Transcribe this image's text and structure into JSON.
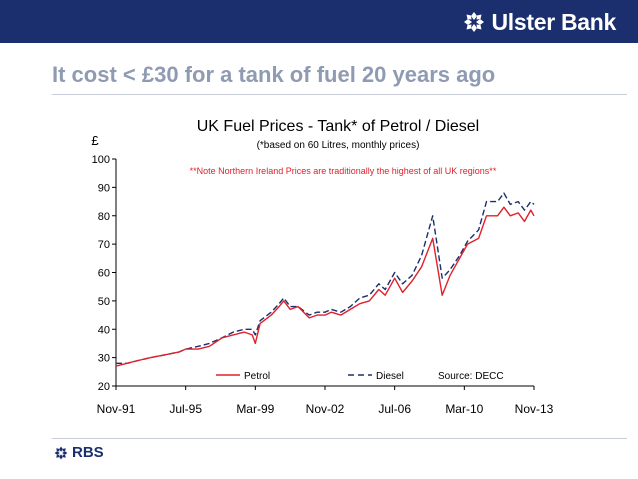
{
  "header": {
    "brand_name": "Ulster Bank",
    "brand_icon": "daisy-wheel-icon",
    "bar_color": "#1b2f6e"
  },
  "slide": {
    "headline": "It cost < £30 for a tank of fuel 20 years ago"
  },
  "footer": {
    "logo_text": "RBS",
    "logo_icon": "daisy-wheel-icon"
  },
  "chart_data": {
    "type": "line",
    "title": "UK Fuel Prices - Tank* of Petrol / Diesel",
    "subtitle": "(*based on 60 Litres, monthly prices)",
    "note": "**Note Northern Ireland Prices are traditionally the highest of all UK regions**",
    "ylabel": "£",
    "source": "Source: DECC",
    "ylim": [
      20,
      100
    ],
    "yticks": [
      "20",
      "30",
      "40",
      "50",
      "60",
      "70",
      "80",
      "90",
      "100"
    ],
    "xticks": [
      "Nov-91",
      "Jul-95",
      "Mar-99",
      "Nov-02",
      "Jul-06",
      "Mar-10",
      "Nov-13"
    ],
    "x_range": [
      "1991-11",
      "2013-11"
    ],
    "grid": false,
    "legend_position": "bottom",
    "series": [
      {
        "name": "Petrol",
        "color": "#e0202a",
        "style": "solid",
        "points": [
          [
            "1991-11",
            27
          ],
          [
            "1992-06",
            28
          ],
          [
            "1993-01",
            29
          ],
          [
            "1993-09",
            30
          ],
          [
            "1994-06",
            31
          ],
          [
            "1995-03",
            32
          ],
          [
            "1995-07",
            33
          ],
          [
            "1996-03",
            33
          ],
          [
            "1996-10",
            34
          ],
          [
            "1997-06",
            37
          ],
          [
            "1998-01",
            38
          ],
          [
            "1998-08",
            39
          ],
          [
            "1999-01",
            38
          ],
          [
            "1999-03",
            35
          ],
          [
            "1999-06",
            42
          ],
          [
            "2000-01",
            45
          ],
          [
            "2000-06",
            48
          ],
          [
            "2000-09",
            50
          ],
          [
            "2001-01",
            47
          ],
          [
            "2001-06",
            48
          ],
          [
            "2002-01",
            44
          ],
          [
            "2002-06",
            45
          ],
          [
            "2002-11",
            45
          ],
          [
            "2003-03",
            46
          ],
          [
            "2003-09",
            45
          ],
          [
            "2004-03",
            47
          ],
          [
            "2004-09",
            49
          ],
          [
            "2005-03",
            50
          ],
          [
            "2005-09",
            54
          ],
          [
            "2006-01",
            52
          ],
          [
            "2006-07",
            58
          ],
          [
            "2006-12",
            53
          ],
          [
            "2007-06",
            57
          ],
          [
            "2007-12",
            62
          ],
          [
            "2008-07",
            72
          ],
          [
            "2009-01",
            52
          ],
          [
            "2009-06",
            59
          ],
          [
            "2009-12",
            65
          ],
          [
            "2010-05",
            70
          ],
          [
            "2010-12",
            72
          ],
          [
            "2011-05",
            80
          ],
          [
            "2011-12",
            80
          ],
          [
            "2012-04",
            83
          ],
          [
            "2012-08",
            80
          ],
          [
            "2013-01",
            81
          ],
          [
            "2013-05",
            78
          ],
          [
            "2013-09",
            82
          ],
          [
            "2013-11",
            80
          ]
        ]
      },
      {
        "name": "Diesel",
        "color": "#1b2f6e",
        "style": "dashed",
        "points": [
          [
            "1991-11",
            28
          ],
          [
            "1992-06",
            28
          ],
          [
            "1993-01",
            29
          ],
          [
            "1993-09",
            30
          ],
          [
            "1994-06",
            31
          ],
          [
            "1995-03",
            32
          ],
          [
            "1995-07",
            33
          ],
          [
            "1996-03",
            34
          ],
          [
            "1996-10",
            35
          ],
          [
            "1997-06",
            37
          ],
          [
            "1998-01",
            39
          ],
          [
            "1998-08",
            40
          ],
          [
            "1999-01",
            40
          ],
          [
            "1999-03",
            38
          ],
          [
            "1999-06",
            43
          ],
          [
            "2000-01",
            46
          ],
          [
            "2000-06",
            49
          ],
          [
            "2000-09",
            51
          ],
          [
            "2001-01",
            48
          ],
          [
            "2001-06",
            48
          ],
          [
            "2002-01",
            45
          ],
          [
            "2002-06",
            46
          ],
          [
            "2002-11",
            46
          ],
          [
            "2003-03",
            47
          ],
          [
            "2003-09",
            46
          ],
          [
            "2004-03",
            48
          ],
          [
            "2004-09",
            51
          ],
          [
            "2005-03",
            52
          ],
          [
            "2005-09",
            56
          ],
          [
            "2006-01",
            54
          ],
          [
            "2006-07",
            60
          ],
          [
            "2006-12",
            56
          ],
          [
            "2007-06",
            59
          ],
          [
            "2007-12",
            66
          ],
          [
            "2008-07",
            80
          ],
          [
            "2009-01",
            58
          ],
          [
            "2009-06",
            61
          ],
          [
            "2009-12",
            66
          ],
          [
            "2010-05",
            71
          ],
          [
            "2010-12",
            75
          ],
          [
            "2011-05",
            85
          ],
          [
            "2011-12",
            85
          ],
          [
            "2012-04",
            88
          ],
          [
            "2012-08",
            84
          ],
          [
            "2013-01",
            85
          ],
          [
            "2013-05",
            82
          ],
          [
            "2013-09",
            85
          ],
          [
            "2013-11",
            84
          ]
        ]
      }
    ]
  }
}
